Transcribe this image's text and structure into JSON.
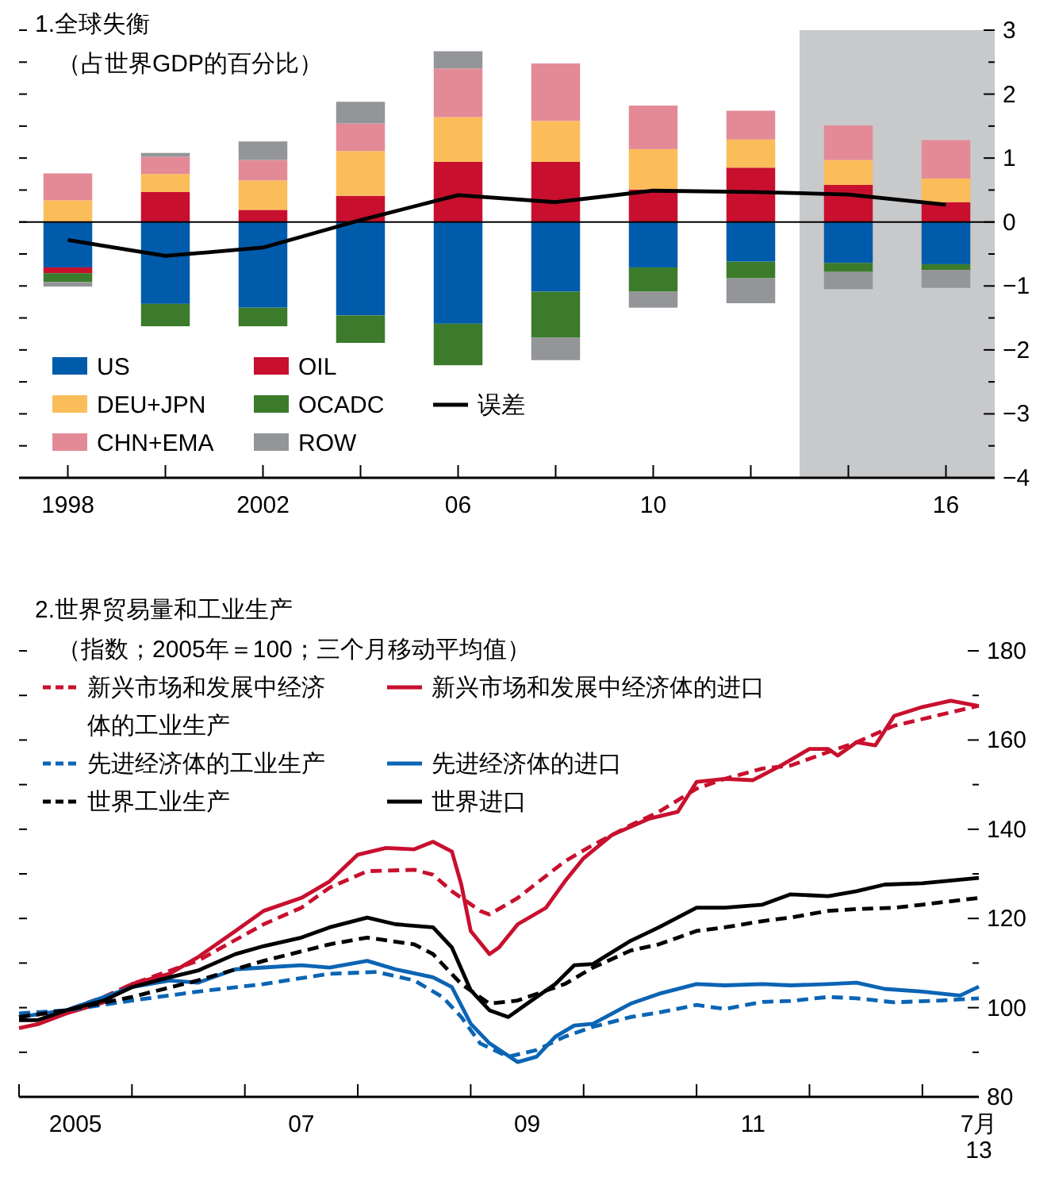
{
  "chart_data": [
    {
      "type": "bar",
      "stacked": true,
      "title": "1.全球失衡",
      "subtitle": "（占世界GDP的百分比）",
      "legend": "bottom left",
      "x": [
        1998,
        2000,
        2002,
        2004,
        2006,
        2008,
        2010,
        2012,
        2014,
        2016
      ],
      "xlim": [
        1997,
        2017
      ],
      "xticks": [
        {
          "value": 1998,
          "label": "1998"
        },
        {
          "value": 2000,
          "label": null
        },
        {
          "value": 2002,
          "label": "2002"
        },
        {
          "value": 2004,
          "label": null
        },
        {
          "value": 2006,
          "label": "06"
        },
        {
          "value": 2008,
          "label": null
        },
        {
          "value": 2010,
          "label": "10"
        },
        {
          "value": 2012,
          "label": null
        },
        {
          "value": 2014,
          "label": null
        },
        {
          "value": 2016,
          "label": "16"
        }
      ],
      "ylim": [
        -4,
        3
      ],
      "yticks": [
        -4,
        {
          "value": -3.5,
          "label": null
        },
        -3,
        {
          "value": -2.5,
          "label": null
        },
        -2,
        {
          "value": -1.5,
          "label": null
        },
        -1,
        {
          "value": -0.5,
          "label": null
        },
        0,
        {
          "value": 0.5,
          "label": null
        },
        1,
        {
          "value": 1.5,
          "label": null
        },
        2,
        {
          "value": 2.5,
          "label": null
        },
        3
      ],
      "bands": [
        {
          "axis": "x",
          "from": 2013,
          "to": 2017,
          "color": "#c8c9cb"
        }
      ],
      "ref_lines": [
        {
          "axis": "y",
          "value": 0,
          "color": "#000000"
        }
      ],
      "series": [
        {
          "name": "US",
          "color": "#005bab",
          "values": [
            -0.71,
            -1.28,
            -1.34,
            -1.46,
            -1.59,
            -1.09,
            -0.71,
            -0.62,
            -0.64,
            -0.66
          ]
        },
        {
          "name": "OIL",
          "color": "#c8102e",
          "values": [
            -0.09,
            0.47,
            0.19,
            0.41,
            0.94,
            0.94,
            0.51,
            0.85,
            0.58,
            0.31
          ]
        },
        {
          "name": "DEU+JPN",
          "color": "#fbbd59",
          "values": [
            0.34,
            0.28,
            0.46,
            0.7,
            0.7,
            0.64,
            0.63,
            0.44,
            0.39,
            0.37
          ]
        },
        {
          "name": "OCADC",
          "color": "#3b7b2b",
          "values": [
            -0.14,
            -0.35,
            -0.29,
            -0.43,
            -0.65,
            -0.72,
            -0.38,
            -0.26,
            -0.14,
            -0.09
          ]
        },
        {
          "name": "CHN+EMA",
          "color": "#e38a96",
          "values": [
            0.42,
            0.27,
            0.32,
            0.43,
            0.76,
            0.9,
            0.68,
            0.45,
            0.54,
            0.6
          ]
        },
        {
          "name": "ROW",
          "color": "#939598",
          "values": [
            -0.07,
            0.06,
            0.29,
            0.34,
            0.27,
            -0.35,
            -0.25,
            -0.39,
            -0.27,
            -0.28
          ]
        },
        {
          "name": "误差",
          "type": "line",
          "color": "#000000",
          "values": [
            -0.28,
            -0.53,
            -0.4,
            0.03,
            0.42,
            0.31,
            0.49,
            0.47,
            0.43,
            0.27
          ]
        }
      ]
    },
    {
      "type": "line",
      "title": "2.世界贸易量和工业生产",
      "subtitle": "（指数；2005年＝100；三个月移动平均值）",
      "legend": "top left",
      "xlim": [
        "2005-01",
        "2013-07"
      ],
      "xticks": [
        {
          "value": "2005-01",
          "label": null
        },
        {
          "value": "2005-07",
          "label": "2005"
        },
        {
          "value": "2006-01",
          "label": null
        },
        {
          "value": "2007-01",
          "label": null
        },
        {
          "value": "2007-07",
          "label": "07"
        },
        {
          "value": "2008-01",
          "label": null
        },
        {
          "value": "2009-01",
          "label": null
        },
        {
          "value": "2009-07",
          "label": "09"
        },
        {
          "value": "2010-01",
          "label": null
        },
        {
          "value": "2011-01",
          "label": null
        },
        {
          "value": "2011-07",
          "label": "11"
        },
        {
          "value": "2012-01",
          "label": null
        },
        {
          "value": "2013-01",
          "label": null
        },
        {
          "value": "2013-07",
          "label": "7月\n13"
        }
      ],
      "ylim": [
        80,
        180
      ],
      "yticks": [
        80,
        {
          "value": 90,
          "label": null
        },
        100,
        {
          "value": 110,
          "label": null
        },
        120,
        {
          "value": 130,
          "label": null
        },
        140,
        {
          "value": 150,
          "label": null
        },
        160,
        {
          "value": 170,
          "label": null
        },
        180
      ],
      "series": [
        {
          "name": "新兴市场和发展中经济体的工业生产",
          "color": "#c8102e",
          "line_style": "dashed",
          "x": [
            "2005-01",
            "2005-06",
            "2005-10",
            "2006-01",
            "2006-08",
            "2007-03",
            "2007-07",
            "2007-10",
            "2008-02",
            "2008-07",
            "2008-09",
            "2008-11",
            "2009-02",
            "2009-03",
            "2009-06",
            "2009-11",
            "2010-02",
            "2010-06",
            "2010-09",
            "2011-01",
            "2011-04",
            "2011-08",
            "2011-11",
            "2012-03",
            "2012-06",
            "2012-10",
            "2013-01",
            "2013-04",
            "2013-07"
          ],
          "values": [
            97.9,
            99.4,
            102.4,
            105.3,
            110.5,
            118.7,
            122.4,
            126.9,
            130.6,
            130.9,
            129.8,
            126.1,
            121.7,
            120.9,
            124.6,
            132.8,
            136.5,
            140.9,
            143.9,
            149.1,
            151.3,
            153.6,
            154.3,
            157.3,
            159.5,
            163.2,
            164.7,
            166.2,
            167.7
          ]
        },
        {
          "name": "新兴市场和发展中经济体的进口",
          "color": "#c8102e",
          "line_style": "solid",
          "x": [
            "2005-01",
            "2005-03",
            "2005-06",
            "2005-10",
            "2006-01",
            "2006-05",
            "2006-08",
            "2006-12",
            "2007-03",
            "2007-07",
            "2007-10",
            "2008-01",
            "2008-04",
            "2008-07",
            "2008-09",
            "2008-11",
            "2008-12",
            "2009-01",
            "2009-03",
            "2009-04",
            "2009-06",
            "2009-09",
            "2009-11",
            "2010-01",
            "2010-04",
            "2010-08",
            "2010-11",
            "2011-01",
            "2011-04",
            "2011-07",
            "2011-10",
            "2012-01",
            "2012-03",
            "2012-04",
            "2012-06",
            "2012-08",
            "2012-10",
            "2013-01",
            "2013-04",
            "2013-07"
          ],
          "values": [
            95.4,
            96.3,
            98.7,
            101.2,
            105.3,
            107.6,
            111.3,
            117.2,
            121.7,
            124.6,
            128.3,
            134.3,
            135.8,
            135.5,
            137.2,
            135,
            127.6,
            117.2,
            112,
            113.5,
            118.7,
            122.4,
            128.3,
            133.5,
            138.7,
            142.4,
            143.9,
            150.6,
            151.3,
            151,
            154.3,
            158,
            158,
            156.5,
            159.5,
            158.8,
            165.4,
            167.4,
            168.8,
            167.6
          ]
        },
        {
          "name": "先进经济体的工业生产",
          "color": "#0b64b4",
          "line_style": "dashed",
          "x": [
            "2005-01",
            "2005-06",
            "2006-01",
            "2006-08",
            "2007-03",
            "2007-10",
            "2008-03",
            "2008-07",
            "2008-10",
            "2008-12",
            "2009-02",
            "2009-05",
            "2009-08",
            "2009-11",
            "2010-02",
            "2010-06",
            "2010-09",
            "2011-01",
            "2011-04",
            "2011-08",
            "2011-11",
            "2012-03",
            "2012-06",
            "2012-10",
            "2013-03",
            "2013-07"
          ],
          "values": [
            98.7,
            99.4,
            101.6,
            103.6,
            105.3,
            107.6,
            108,
            106.1,
            102.4,
            97.9,
            92,
            89,
            90.5,
            93.5,
            95.7,
            97.9,
            98.9,
            100.6,
            99.7,
            101.3,
            101.5,
            102.4,
            102.1,
            101.2,
            101.6,
            102.1
          ]
        },
        {
          "name": "先进经济体的进口",
          "color": "#0b64b4",
          "line_style": "solid",
          "x": [
            "2005-01",
            "2005-06",
            "2006-01",
            "2006-05",
            "2006-08",
            "2006-12",
            "2007-03",
            "2007-07",
            "2007-10",
            "2008-02",
            "2008-05",
            "2008-09",
            "2008-11",
            "2009-01",
            "2009-03",
            "2009-06",
            "2009-08",
            "2009-10",
            "2009-12",
            "2010-02",
            "2010-06",
            "2010-09",
            "2011-01",
            "2011-04",
            "2011-08",
            "2011-11",
            "2012-03",
            "2012-06",
            "2012-09",
            "2013-01",
            "2013-05",
            "2013-07"
          ],
          "values": [
            97.9,
            99.4,
            104.6,
            106.1,
            105.6,
            108.6,
            109,
            109.5,
            109,
            110.5,
            108.6,
            106.8,
            104.6,
            96.4,
            92,
            87.8,
            89,
            93.5,
            96,
            96.4,
            100.9,
            103.1,
            105.3,
            105,
            105.3,
            105,
            105.3,
            105.6,
            104.2,
            103.6,
            102.7,
            104.7
          ]
        },
        {
          "name": "世界工业生产",
          "color": "#000000",
          "line_style": "dashed",
          "x": [
            "2005-01",
            "2005-06",
            "2006-01",
            "2006-08",
            "2007-03",
            "2007-10",
            "2008-02",
            "2008-07",
            "2008-09",
            "2008-12",
            "2009-03",
            "2009-06",
            "2009-11",
            "2010-02",
            "2010-06",
            "2010-09",
            "2011-01",
            "2011-04",
            "2011-08",
            "2011-11",
            "2012-03",
            "2012-06",
            "2012-10",
            "2013-01",
            "2013-07"
          ],
          "values": [
            97.9,
            99.4,
            102.4,
            106.1,
            110.5,
            114.2,
            115.7,
            114.2,
            112,
            105.3,
            100.9,
            101.6,
            105.3,
            109,
            112.8,
            114.2,
            117.2,
            118,
            119.4,
            120.2,
            121.7,
            122.1,
            122.4,
            123.1,
            124.6
          ]
        },
        {
          "name": "世界进口",
          "color": "#000000",
          "line_style": "solid",
          "x": [
            "2005-01",
            "2005-03",
            "2005-06",
            "2005-10",
            "2006-01",
            "2006-05",
            "2006-08",
            "2006-12",
            "2007-03",
            "2007-07",
            "2007-10",
            "2008-02",
            "2008-05",
            "2008-09",
            "2008-11",
            "2009-01",
            "2009-03",
            "2009-05",
            "2009-07",
            "2009-10",
            "2009-12",
            "2010-02",
            "2010-06",
            "2010-09",
            "2011-01",
            "2011-04",
            "2011-08",
            "2011-11",
            "2012-03",
            "2012-06",
            "2012-09",
            "2013-01",
            "2013-07"
          ],
          "values": [
            97.2,
            97.2,
            99.4,
            101.6,
            104.6,
            106.8,
            108.3,
            112,
            113.8,
            115.7,
            118,
            120.2,
            118.7,
            118,
            113.5,
            103.9,
            99.4,
            97.9,
            100.9,
            105.3,
            109.5,
            109.8,
            115,
            118,
            122.4,
            122.4,
            123.1,
            125.4,
            125,
            126.1,
            127.6,
            127.9,
            129.1
          ]
        }
      ]
    }
  ]
}
